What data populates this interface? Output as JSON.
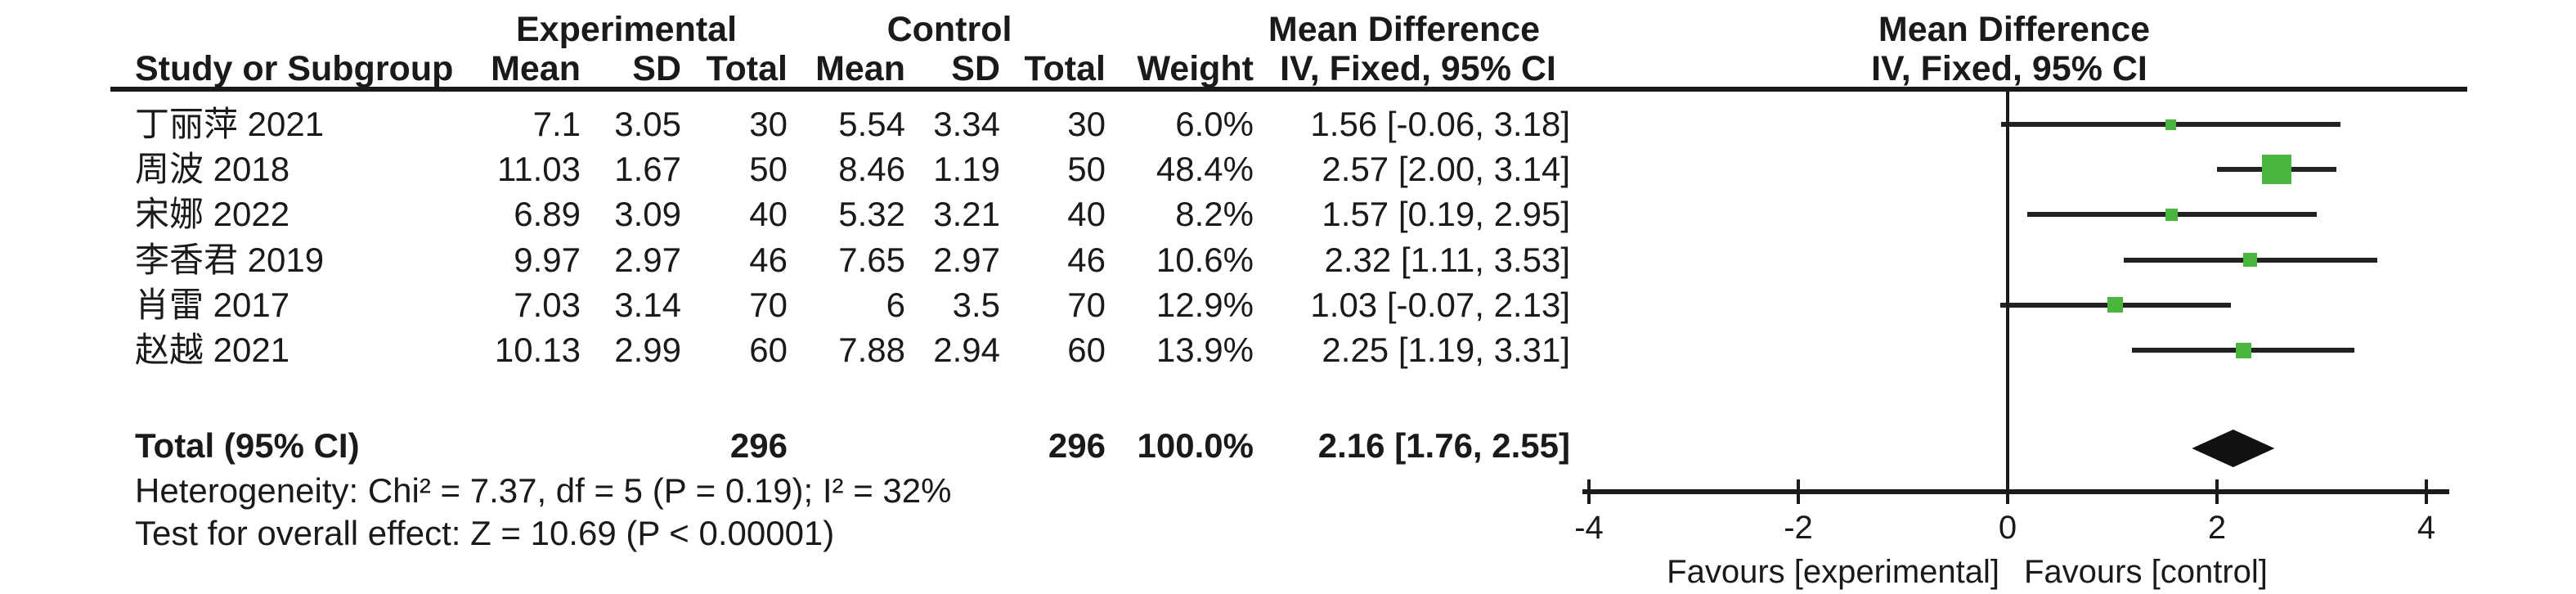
{
  "table": {
    "group_headers": [
      "Experimental",
      "Control",
      "Mean Difference",
      "Mean Difference"
    ],
    "columns": [
      "Study or Subgroup",
      "Mean",
      "SD",
      "Total",
      "Mean",
      "SD",
      "Total",
      "Weight",
      "IV, Fixed, 95% CI",
      "IV, Fixed, 95% CI"
    ]
  },
  "chart_data": {
    "type": "scatter",
    "subtype": "forest-plot-meta-analysis",
    "title": "Mean Difference",
    "subtitle": "IV, Fixed, 95% CI",
    "effect_measure": "Mean Difference, IV, Fixed, 95% CI",
    "x_axis": {
      "range": [
        -4,
        4
      ],
      "ticks": [
        -4,
        -2,
        0,
        2,
        4
      ],
      "left_label": "Favours [experimental]",
      "right_label": "Favours [control]"
    },
    "studies": [
      {
        "name": "丁丽萍 2021",
        "mean_exp": "7.1",
        "sd_exp": "3.05",
        "n_exp": "30",
        "mean_ctl": "5.54",
        "sd_ctl": "3.34",
        "n_ctl": "30",
        "weight": "6.0%",
        "weight_pct": 6.0,
        "md": 1.56,
        "ci_low": -0.06,
        "ci_high": 3.18,
        "ci_text": "1.56 [-0.06, 3.18]"
      },
      {
        "name": "周波 2018",
        "mean_exp": "11.03",
        "sd_exp": "1.67",
        "n_exp": "50",
        "mean_ctl": "8.46",
        "sd_ctl": "1.19",
        "n_ctl": "50",
        "weight": "48.4%",
        "weight_pct": 48.4,
        "md": 2.57,
        "ci_low": 2.0,
        "ci_high": 3.14,
        "ci_text": "2.57 [2.00, 3.14]"
      },
      {
        "name": "宋娜 2022",
        "mean_exp": "6.89",
        "sd_exp": "3.09",
        "n_exp": "40",
        "mean_ctl": "5.32",
        "sd_ctl": "3.21",
        "n_ctl": "40",
        "weight": "8.2%",
        "weight_pct": 8.2,
        "md": 1.57,
        "ci_low": 0.19,
        "ci_high": 2.95,
        "ci_text": "1.57 [0.19, 2.95]"
      },
      {
        "name": "李香君 2019",
        "mean_exp": "9.97",
        "sd_exp": "2.97",
        "n_exp": "46",
        "mean_ctl": "7.65",
        "sd_ctl": "2.97",
        "n_ctl": "46",
        "weight": "10.6%",
        "weight_pct": 10.6,
        "md": 2.32,
        "ci_low": 1.11,
        "ci_high": 3.53,
        "ci_text": "2.32 [1.11, 3.53]"
      },
      {
        "name": "肖雷 2017",
        "mean_exp": "7.03",
        "sd_exp": "3.14",
        "n_exp": "70",
        "mean_ctl": "6",
        "sd_ctl": "3.5",
        "n_ctl": "70",
        "weight": "12.9%",
        "weight_pct": 12.9,
        "md": 1.03,
        "ci_low": -0.07,
        "ci_high": 2.13,
        "ci_text": "1.03 [-0.07, 2.13]"
      },
      {
        "name": "赵越 2021",
        "mean_exp": "10.13",
        "sd_exp": "2.99",
        "n_exp": "60",
        "mean_ctl": "7.88",
        "sd_ctl": "2.94",
        "n_ctl": "60",
        "weight": "13.9%",
        "weight_pct": 13.9,
        "md": 2.25,
        "ci_low": 1.19,
        "ci_high": 3.31,
        "ci_text": "2.25 [1.19, 3.31]"
      }
    ],
    "total": {
      "label": "Total (95% CI)",
      "n_exp": "296",
      "n_ctl": "296",
      "weight": "100.0%",
      "md": 2.16,
      "ci_low": 1.76,
      "ci_high": 2.55,
      "ci_text": "2.16 [1.76, 2.55]"
    },
    "heterogeneity": "Heterogeneity: Chi² = 7.37, df = 5 (P = 0.19); I² = 32%",
    "overall_effect": "Test for overall effect: Z = 10.69 (P < 0.00001)"
  },
  "colors": {
    "marker_green": "#4ab53c",
    "text": "#1a1a1a",
    "line": "#222222",
    "diamond": "#111111"
  }
}
